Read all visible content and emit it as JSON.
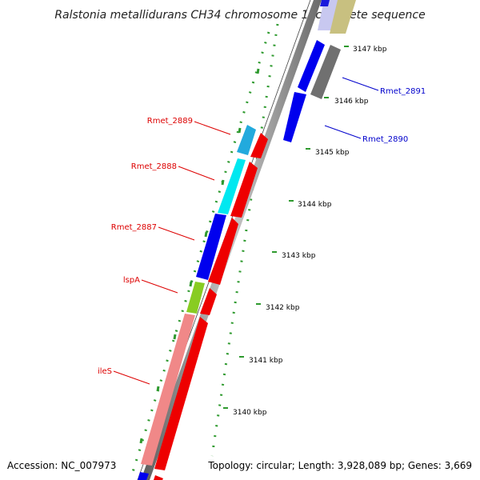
{
  "title": "Ralstonia metallidurans CH34 chromosome 1, complete sequence",
  "footer": {
    "accession": "Accession: NC_007973",
    "summary": "Topology: circular; Length: 3,928,089 bp; Genes: 3,669"
  },
  "colors": {
    "backbone": "#808080",
    "ruler_dots": "#2e9a2e",
    "forward_label": "#0000cc",
    "reverse_label": "#dd0000"
  },
  "ticks": [
    "3147 kbp",
    "3146 kbp",
    "3145 kbp",
    "3144 kbp",
    "3143 kbp",
    "3142 kbp",
    "3141 kbp",
    "3140 kbp"
  ],
  "gene_labels": {
    "forward": [
      "Rmet_2891",
      "Rmet_2890"
    ],
    "reverse": [
      "Rmet_2889",
      "Rmet_2888",
      "Rmet_2887",
      "lspA",
      "ileS"
    ]
  }
}
